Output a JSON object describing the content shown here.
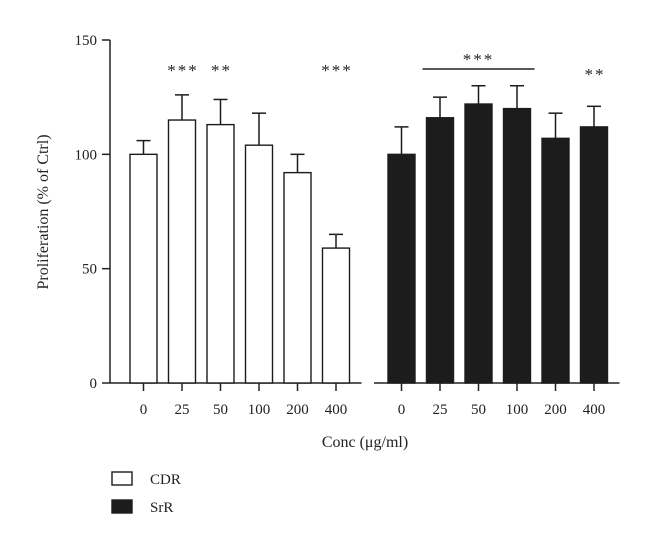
{
  "chart_data": {
    "type": "bar",
    "xlabel": "Conc (μg/ml)",
    "ylabel": "Proliferation (% of Ctrl)",
    "ylim": [
      0,
      150
    ],
    "yticks": [
      "0",
      "50",
      "100",
      "150"
    ],
    "grid": false,
    "legend_position": "bottom-left",
    "series": [
      {
        "name": "CDR",
        "fill": "#ffffff",
        "categories": [
          "0",
          "25",
          "50",
          "100",
          "200",
          "400"
        ],
        "values": [
          100,
          115,
          113,
          104,
          92,
          59
        ],
        "errors": [
          6,
          11,
          11,
          14,
          8,
          6
        ],
        "significance": [
          "",
          "***",
          "**",
          "",
          "",
          "***"
        ]
      },
      {
        "name": "SrR",
        "fill": "#1c1c1c",
        "categories": [
          "0",
          "25",
          "50",
          "100",
          "200",
          "400"
        ],
        "values": [
          100,
          116,
          122,
          120,
          107,
          112
        ],
        "errors": [
          12,
          9,
          8,
          10,
          11,
          9
        ],
        "significance": [
          "",
          "",
          "",
          "",
          "",
          "**"
        ]
      }
    ],
    "bracket": {
      "series": "SrR",
      "from": "25",
      "to": "100",
      "label": "***"
    }
  }
}
